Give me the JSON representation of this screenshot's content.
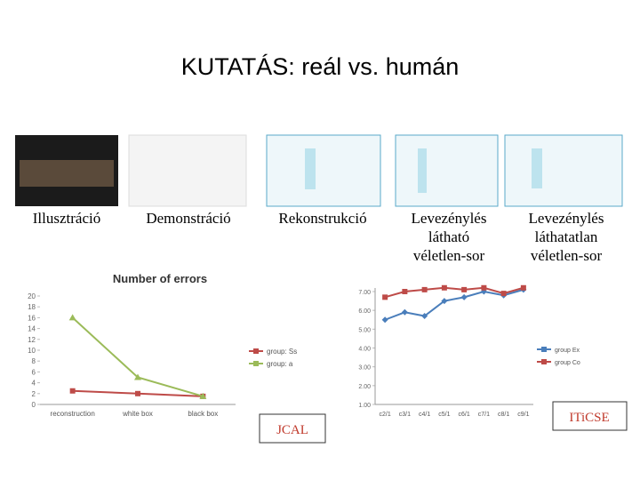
{
  "title": "KUTATÁS: reál vs. humán",
  "labels": [
    [
      "Illusztráció"
    ],
    [
      "Demonstráció"
    ],
    [
      "Rekonstrukció"
    ],
    [
      "Levezénylés",
      "látható",
      "véletlen-sor"
    ],
    [
      "Levezénylés",
      "láthatatlan",
      "véletlen-sor"
    ]
  ],
  "tags": [
    "JCAL",
    "ITiCSE"
  ],
  "chart_data": [
    {
      "type": "line",
      "title": "Number of errors",
      "categories": [
        "reconstruction",
        "white box",
        "black box"
      ],
      "series": [
        {
          "name": "group: Ss",
          "color": "#be4b48",
          "values": [
            2.5,
            2,
            1.5
          ]
        },
        {
          "name": "group: a",
          "color": "#9bbb59",
          "values": [
            16,
            5,
            1.5
          ]
        }
      ],
      "ylim": [
        0,
        20
      ],
      "yticks": [
        0,
        2,
        4,
        6,
        8,
        10,
        12,
        14,
        16,
        18,
        20
      ],
      "grid": false
    },
    {
      "type": "line",
      "categories": [
        "c2/1",
        "c3/1",
        "c4/1",
        "c5/1",
        "c6/1",
        "c7/1",
        "c8/1",
        "c9/1"
      ],
      "series": [
        {
          "name": "group Ex",
          "color": "#4a7ebb",
          "values": [
            5.5,
            5.9,
            5.7,
            6.5,
            6.7,
            7.0,
            6.8,
            7.1
          ]
        },
        {
          "name": "group Co",
          "color": "#be4b48",
          "values": [
            6.7,
            7.0,
            7.1,
            7.2,
            7.1,
            7.2,
            6.9,
            7.2
          ]
        }
      ],
      "ylim": [
        1,
        7
      ],
      "yticks": [
        {
          "value": 1,
          "label": "1.00"
        },
        {
          "value": 2,
          "label": "2.00"
        },
        {
          "value": 3,
          "label": "3.00"
        },
        {
          "value": 4,
          "label": "4.00"
        },
        {
          "value": 5,
          "label": "5.00"
        },
        {
          "value": 6,
          "label": "6.00"
        },
        {
          "value": 7,
          "label": "7.00"
        }
      ],
      "grid": false
    }
  ]
}
